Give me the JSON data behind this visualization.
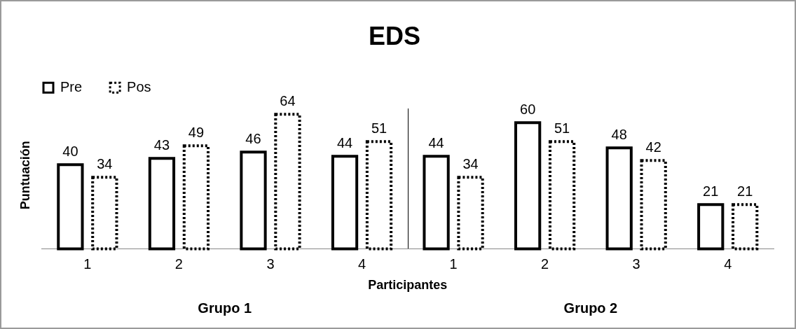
{
  "chart_data": {
    "type": "bar",
    "title": "EDS",
    "xlabel": "Participantes",
    "ylabel": "Puntuación",
    "categories": [
      "1",
      "2",
      "3",
      "4",
      "1",
      "2",
      "3",
      "4"
    ],
    "series": [
      {
        "name": "Pre",
        "color": "#000000",
        "line_style": "solid",
        "values": [
          40,
          43,
          46,
          44,
          44,
          60,
          48,
          21
        ]
      },
      {
        "name": "Pos",
        "color": "#000000",
        "line_style": "dotted",
        "values": [
          34,
          49,
          64,
          51,
          34,
          51,
          42,
          21
        ]
      }
    ],
    "annotations": [
      "Grupo 1",
      "Grupo 2"
    ],
    "data_labels": true,
    "grid": false,
    "legend": "top left"
  }
}
